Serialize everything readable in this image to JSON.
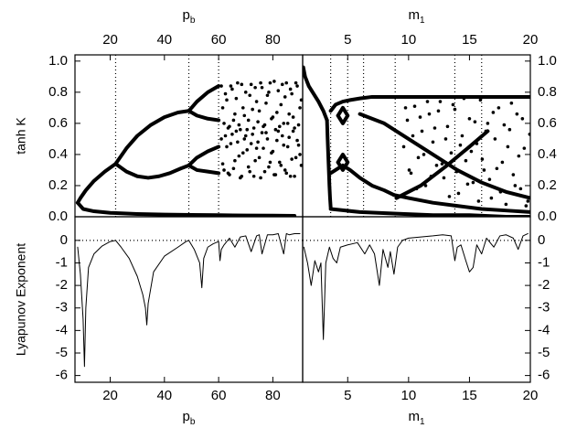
{
  "chart_data": [
    {
      "type": "bifurcation",
      "x_label": [
        "p",
        "b"
      ],
      "y_label": "tanh K",
      "xlim": [
        7,
        91
      ],
      "xticks": [
        20,
        40,
        60,
        80
      ],
      "ylim": [
        0,
        1.04
      ],
      "yticks": [
        {
          "value": 0,
          "label": "0.0"
        },
        0.2,
        0.4,
        0.6,
        0.8,
        {
          "value": 1,
          "label": "1.0"
        }
      ],
      "vlines": [
        22,
        49,
        60
      ],
      "series": [
        {
          "style": "line",
          "color": "#000",
          "x": [
            8,
            10,
            14,
            20,
            30,
            40,
            50,
            60,
            70,
            80,
            88
          ],
          "values": [
            0.09,
            0.05,
            0.035,
            0.025,
            0.018,
            0.014,
            0.012,
            0.01,
            0.008,
            0.007,
            0.006
          ]
        },
        {
          "style": "line",
          "color": "#000",
          "x": [
            8,
            9,
            11,
            14,
            18,
            22
          ],
          "values": [
            0.09,
            0.12,
            0.17,
            0.23,
            0.29,
            0.34
          ]
        },
        {
          "style": "line",
          "color": "#000",
          "x": [
            22,
            26,
            30,
            35,
            40,
            45,
            49
          ],
          "values": [
            0.34,
            0.44,
            0.52,
            0.59,
            0.64,
            0.67,
            0.68
          ]
        },
        {
          "style": "line",
          "color": "#000",
          "x": [
            22,
            26,
            30,
            34,
            38,
            42,
            46,
            49
          ],
          "values": [
            0.34,
            0.29,
            0.26,
            0.25,
            0.26,
            0.28,
            0.31,
            0.33
          ]
        },
        {
          "style": "line",
          "color": "#000",
          "x": [
            49,
            52,
            56,
            60
          ],
          "values": [
            0.68,
            0.74,
            0.8,
            0.84
          ]
        },
        {
          "style": "line",
          "color": "#000",
          "x": [
            49,
            52,
            56,
            60
          ],
          "values": [
            0.68,
            0.65,
            0.63,
            0.62
          ]
        },
        {
          "style": "line",
          "color": "#000",
          "x": [
            49,
            52,
            56,
            60
          ],
          "values": [
            0.33,
            0.38,
            0.42,
            0.45
          ]
        },
        {
          "style": "line",
          "color": "#000",
          "x": [
            49,
            52,
            56,
            60
          ],
          "values": [
            0.33,
            0.3,
            0.29,
            0.28
          ]
        },
        {
          "style": "dot",
          "color": "#000",
          "x": [
            61,
            62,
            63,
            64,
            65,
            66,
            67,
            68,
            69,
            70,
            71,
            72,
            73,
            74,
            75,
            76,
            77,
            78,
            79,
            80,
            81,
            82,
            83,
            84,
            85,
            86,
            87,
            88,
            89,
            90
          ],
          "values": [
            0.84,
            0.6,
            0.75,
            0.58,
            0.82,
            0.66,
            0.86,
            0.56,
            0.7,
            0.8,
            0.62,
            0.85,
            0.57,
            0.74,
            0.68,
            0.83,
            0.59,
            0.78,
            0.86,
            0.64,
            0.56,
            0.81,
            0.72,
            0.6,
            0.86,
            0.66,
            0.79,
            0.57,
            0.84,
            0.7
          ]
        },
        {
          "style": "dot",
          "color": "#000",
          "x": [
            61.5,
            62.5,
            63.5,
            64.5,
            65.5,
            66.5,
            67.5,
            68.5,
            69.5,
            70.5,
            71.5,
            72.5,
            73.5,
            74.5,
            75.5,
            76.5,
            77.5,
            78.5,
            79.5,
            80.5,
            81.5,
            82.5,
            83.5,
            84.5,
            85.5,
            86.5,
            87.5,
            88.5,
            89.5,
            90.5
          ],
          "values": [
            0.7,
            0.79,
            0.57,
            0.84,
            0.62,
            0.76,
            0.59,
            0.85,
            0.65,
            0.56,
            0.78,
            0.69,
            0.83,
            0.61,
            0.86,
            0.58,
            0.73,
            0.8,
            0.63,
            0.87,
            0.67,
            0.58,
            0.85,
            0.77,
            0.6,
            0.82,
            0.64,
            0.86,
            0.59,
            0.75
          ]
        },
        {
          "style": "dot",
          "color": "#000",
          "x": [
            61,
            62,
            63,
            64,
            65,
            66,
            67,
            68,
            69,
            70,
            71,
            72,
            73,
            74,
            75,
            76,
            77,
            78,
            79,
            80,
            81,
            82,
            83,
            84,
            85,
            86,
            87,
            88,
            89,
            90
          ],
          "values": [
            0.5,
            0.3,
            0.45,
            0.27,
            0.53,
            0.36,
            0.48,
            0.25,
            0.41,
            0.52,
            0.32,
            0.47,
            0.26,
            0.44,
            0.38,
            0.54,
            0.29,
            0.5,
            0.35,
            0.42,
            0.27,
            0.55,
            0.33,
            0.46,
            0.28,
            0.51,
            0.37,
            0.26,
            0.49,
            0.4
          ]
        },
        {
          "style": "dot",
          "color": "#000",
          "x": [
            61.5,
            62.5,
            63.5,
            64.5,
            65.5,
            66.5,
            67.5,
            68.5,
            69.5,
            70.5,
            71.5,
            72.5,
            73.5,
            74.5,
            75.5,
            76.5,
            77.5,
            78.5,
            79.5,
            80.5,
            81.5,
            82.5,
            83.5,
            84.5,
            85.5,
            86.5,
            87.5,
            88.5,
            89.5,
            90.5
          ],
          "values": [
            0.34,
            0.52,
            0.28,
            0.47,
            0.31,
            0.55,
            0.39,
            0.26,
            0.5,
            0.43,
            0.29,
            0.53,
            0.36,
            0.48,
            0.25,
            0.44,
            0.54,
            0.32,
            0.41,
            0.27,
            0.49,
            0.35,
            0.52,
            0.3,
            0.45,
            0.26,
            0.55,
            0.38,
            0.46,
            0.33
          ]
        }
      ]
    },
    {
      "type": "bifurcation",
      "x_label": [
        "m",
        "1"
      ],
      "xlim": [
        1.3,
        20
      ],
      "xticks": [
        5,
        10,
        15,
        20
      ],
      "ylim": [
        0,
        1.04
      ],
      "yticks": [
        {
          "value": 0,
          "label": "0.0"
        },
        0.2,
        0.4,
        0.6,
        0.8,
        {
          "value": 1,
          "label": "1.0"
        }
      ],
      "vlines": [
        3.6,
        5.0,
        6.3,
        8.9,
        13.8,
        16.0
      ],
      "series": [
        {
          "style": "line",
          "color": "#000",
          "x": [
            1.35,
            1.5,
            1.8,
            2.2,
            2.6,
            3.0,
            3.3
          ],
          "values": [
            0.96,
            0.9,
            0.84,
            0.79,
            0.74,
            0.68,
            0.62
          ]
        },
        {
          "style": "line",
          "color": "#000",
          "x": [
            3.3,
            3.35,
            3.4,
            3.45,
            3.5,
            3.55,
            3.6
          ],
          "values": [
            0.62,
            0.5,
            0.4,
            0.3,
            0.2,
            0.12,
            0.06
          ]
        },
        {
          "style": "line",
          "color": "#000",
          "x": [
            3.6,
            4,
            4.6,
            5.2,
            6,
            7,
            8,
            8.8,
            10,
            12,
            14,
            16,
            18,
            20
          ],
          "values": [
            0.68,
            0.72,
            0.74,
            0.75,
            0.76,
            0.77,
            0.77,
            0.77,
            0.77,
            0.77,
            0.77,
            0.77,
            0.77,
            0.77
          ]
        },
        {
          "style": "line",
          "color": "#000",
          "x": [
            4.2,
            4.6,
            5.0,
            4.6,
            4.2
          ],
          "values": [
            0.65,
            0.7,
            0.65,
            0.6,
            0.65
          ]
        },
        {
          "style": "line",
          "color": "#000",
          "x": [
            4.2,
            4.6,
            5.0,
            4.6,
            4.2
          ],
          "values": [
            0.35,
            0.4,
            0.35,
            0.3,
            0.35
          ]
        },
        {
          "style": "line",
          "color": "#000",
          "x": [
            3.6,
            4,
            4.6,
            5.2,
            6,
            7,
            8,
            8.8
          ],
          "values": [
            0.28,
            0.3,
            0.33,
            0.3,
            0.25,
            0.2,
            0.17,
            0.14
          ]
        },
        {
          "style": "line",
          "color": "#000",
          "x": [
            6,
            8,
            10,
            12,
            14,
            16,
            18,
            20
          ],
          "values": [
            0.66,
            0.6,
            0.5,
            0.4,
            0.3,
            0.22,
            0.16,
            0.12
          ]
        },
        {
          "style": "line",
          "color": "#000",
          "x": [
            9,
            11,
            13,
            15,
            16.5
          ],
          "values": [
            0.12,
            0.2,
            0.32,
            0.45,
            0.55
          ]
        },
        {
          "style": "line",
          "color": "#000",
          "x": [
            8.8,
            10,
            12,
            14,
            16,
            18,
            20
          ],
          "values": [
            0.14,
            0.12,
            0.09,
            0.07,
            0.05,
            0.04,
            0.03
          ]
        },
        {
          "style": "line",
          "color": "#000",
          "x": [
            3.6,
            6,
            9,
            12,
            15,
            18,
            20
          ],
          "values": [
            0.05,
            0.03,
            0.02,
            0.01,
            0.01,
            0.0,
            0.0
          ]
        },
        {
          "style": "dot",
          "color": "#000",
          "x": [
            9.6,
            9.9,
            10.2,
            10.5,
            10.8,
            11.1,
            11.4,
            11.7,
            12.0,
            12.3,
            12.6,
            12.9,
            13.2,
            13.5,
            13.8,
            14.1,
            14.4,
            14.7,
            15.0,
            15.3,
            15.6,
            15.9,
            16.2,
            16.5,
            16.8,
            17.1,
            17.4,
            17.7,
            18.0,
            18.3,
            18.6,
            18.9,
            19.2,
            19.5,
            19.8
          ],
          "values": [
            0.45,
            0.62,
            0.28,
            0.71,
            0.38,
            0.55,
            0.2,
            0.66,
            0.48,
            0.33,
            0.74,
            0.25,
            0.58,
            0.41,
            0.69,
            0.15,
            0.52,
            0.36,
            0.63,
            0.22,
            0.47,
            0.75,
            0.3,
            0.6,
            0.12,
            0.5,
            0.7,
            0.35,
            0.08,
            0.56,
            0.27,
            0.66,
            0.18,
            0.44,
            0.1
          ]
        },
        {
          "style": "dot",
          "color": "#000",
          "x": [
            9.75,
            10.05,
            10.35,
            10.65,
            10.95,
            11.25,
            11.55,
            11.85,
            12.15,
            12.45,
            12.75,
            13.05,
            13.35,
            13.65,
            13.95,
            14.25,
            14.55,
            14.85,
            15.15,
            15.45,
            15.75,
            16.05,
            16.35,
            16.65,
            16.95,
            17.25,
            17.55,
            17.85,
            18.15,
            18.45,
            18.75,
            19.05,
            19.35,
            19.65,
            19.95
          ],
          "values": [
            0.7,
            0.3,
            0.52,
            0.18,
            0.64,
            0.4,
            0.74,
            0.26,
            0.57,
            0.68,
            0.34,
            0.5,
            0.13,
            0.72,
            0.29,
            0.46,
            0.76,
            0.21,
            0.42,
            0.61,
            0.1,
            0.37,
            0.55,
            0.24,
            0.67,
            0.31,
            0.16,
            0.59,
            0.45,
            0.73,
            0.2,
            0.39,
            0.63,
            0.07,
            0.53
          ]
        }
      ]
    },
    {
      "type": "line",
      "x_label": [
        "p",
        "b"
      ],
      "y_label": "Lyapunov Exponent",
      "xlim": [
        7,
        91
      ],
      "xticks": [
        20,
        40,
        60,
        80
      ],
      "ylim": [
        -6.3,
        1.05
      ],
      "yticks": [
        -6,
        -5,
        -4,
        -3,
        -2,
        -1,
        0
      ],
      "hlines": [
        0
      ],
      "series": [
        {
          "style": "thin",
          "color": "#000",
          "x": [
            8,
            9,
            10,
            10.5,
            11,
            12,
            14,
            17,
            20,
            22,
            24,
            27,
            30,
            32,
            33,
            33.5,
            34,
            36,
            40,
            45,
            48,
            49,
            51,
            53,
            53.8,
            54.5,
            56,
            58,
            60,
            60.5,
            61,
            62,
            64,
            66,
            68,
            70,
            72,
            74,
            75,
            76,
            78,
            80,
            82,
            84,
            85,
            86,
            88,
            90
          ],
          "values": [
            -0.3,
            -1.5,
            -3.5,
            -5.6,
            -3.0,
            -1.2,
            -0.6,
            -0.25,
            -0.05,
            0,
            -0.3,
            -0.8,
            -1.6,
            -2.4,
            -3.0,
            -3.75,
            -2.8,
            -1.4,
            -0.7,
            -0.3,
            -0.05,
            0,
            -0.4,
            -1.0,
            -2.1,
            -0.8,
            -0.3,
            -0.15,
            -0.05,
            -0.9,
            -0.4,
            -0.2,
            0.1,
            -0.3,
            0.15,
            0.2,
            -0.5,
            0.2,
            0.25,
            -0.6,
            0.25,
            0.25,
            0.3,
            -0.6,
            0.3,
            0.25,
            0.3,
            0.3
          ]
        }
      ]
    },
    {
      "type": "line",
      "x_label": [
        "m",
        "1"
      ],
      "xlim": [
        1.3,
        20
      ],
      "xticks": [
        5,
        10,
        15,
        20
      ],
      "ylim": [
        -6.3,
        1.05
      ],
      "yticks": [
        -6,
        -5,
        -4,
        -3,
        -2,
        -1,
        0
      ],
      "hlines": [
        0
      ],
      "series": [
        {
          "style": "thin",
          "color": "#000",
          "x": [
            1.4,
            1.7,
            2.0,
            2.3,
            2.6,
            2.8,
            3.0,
            3.2,
            3.5,
            3.8,
            4.1,
            4.4,
            5.0,
            5.8,
            6.4,
            6.8,
            7.2,
            7.6,
            7.9,
            8.3,
            8.5,
            8.8,
            9.1,
            9.5,
            10,
            11,
            12,
            12.8,
            13.5,
            13.8,
            14.0,
            14.3,
            14.7,
            15.0,
            15.3,
            15.6,
            16.0,
            16.4,
            17.0,
            17.5,
            18.0,
            18.6,
            19.0,
            19.4,
            19.8
          ],
          "values": [
            -0.3,
            -1.0,
            -2.0,
            -0.9,
            -1.4,
            -1.0,
            -4.4,
            -1.0,
            -0.3,
            -0.8,
            -1.0,
            -0.3,
            -0.2,
            -0.1,
            -0.6,
            -0.2,
            -0.6,
            -2.0,
            -0.4,
            -1.2,
            -0.5,
            -1.5,
            -0.3,
            0.0,
            0.1,
            0.15,
            0.2,
            0.25,
            0.2,
            -0.9,
            -0.3,
            -0.2,
            -0.9,
            -1.4,
            -1.2,
            -0.2,
            -0.6,
            0.1,
            -0.3,
            0.2,
            0.25,
            0.1,
            -0.4,
            0.2,
            0.3
          ]
        }
      ]
    }
  ]
}
